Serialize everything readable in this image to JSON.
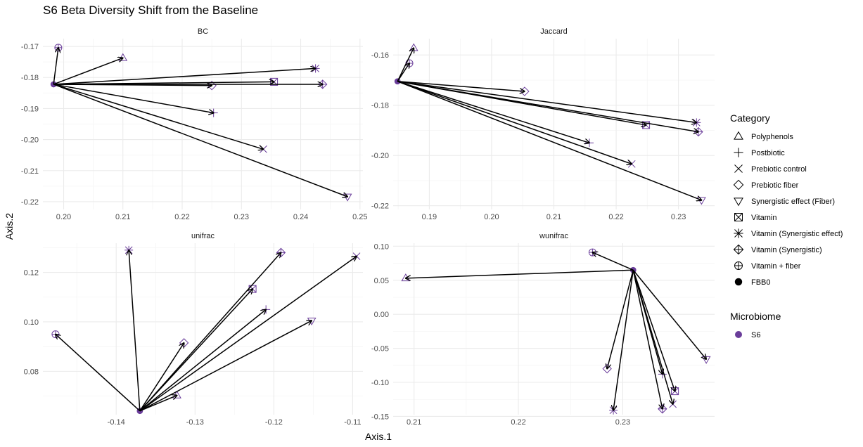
{
  "title": "S6 Beta Diversity Shift from the Baseline",
  "xlabel": "Axis.1",
  "ylabel": "Axis.2",
  "colors": {
    "point": "#6a3d9a",
    "arrow": "#000000",
    "grid_major": "#ebebeb",
    "grid_minor": "#f5f5f5",
    "text": "#4d4d4d"
  },
  "legend": {
    "category_title": "Category",
    "category_items": [
      {
        "label": "Polyphenols",
        "shape": "triangle"
      },
      {
        "label": "Postbiotic",
        "shape": "plus"
      },
      {
        "label": "Prebiotic control",
        "shape": "cross"
      },
      {
        "label": "Prebiotic fiber",
        "shape": "diamond"
      },
      {
        "label": "Synergistic effect (Fiber)",
        "shape": "triangle-down"
      },
      {
        "label": "Vitamin",
        "shape": "square-cross"
      },
      {
        "label": "Vitamin (Synergistic effect)",
        "shape": "asterisk"
      },
      {
        "label": "Vitamin (Synergistic)",
        "shape": "diamond-plus"
      },
      {
        "label": "Vitamin + fiber",
        "shape": "circle-plus"
      },
      {
        "label": "FBB0",
        "shape": "dot"
      }
    ],
    "microbiome_title": "Microbiome",
    "microbiome_items": [
      {
        "label": "S6",
        "color": "#6a3d9a"
      }
    ]
  },
  "chart_data": [
    {
      "type": "scatter",
      "title": "BC",
      "xlim": [
        0.1965,
        0.2505
      ],
      "ylim": [
        -0.2225,
        -0.1675
      ],
      "xticks": [
        0.2,
        0.21,
        0.22,
        0.23,
        0.24,
        0.25
      ],
      "xtick_labels": [
        "0.20",
        "0.21",
        "0.22",
        "0.23",
        "0.24",
        "0.25"
      ],
      "yticks": [
        -0.17,
        -0.18,
        -0.19,
        -0.2,
        -0.21,
        -0.22
      ],
      "ytick_labels": [
        "-0.17",
        "-0.18",
        "-0.19",
        "-0.20",
        "-0.21",
        "-0.22"
      ],
      "baseline": {
        "category": "FBB0",
        "x": 0.1983,
        "y": -0.1822
      },
      "points": [
        {
          "category": "Vitamin + fiber",
          "x": 0.1991,
          "y": -0.1704
        },
        {
          "category": "Polyphenols",
          "x": 0.21,
          "y": -0.1737
        },
        {
          "category": "Vitamin (Synergistic effect)",
          "x": 0.2425,
          "y": -0.1771
        },
        {
          "category": "Vitamin",
          "x": 0.2355,
          "y": -0.1814
        },
        {
          "category": "Prebiotic fiber",
          "x": 0.225,
          "y": -0.1826
        },
        {
          "category": "Vitamin (Synergistic)",
          "x": 0.2437,
          "y": -0.1822
        },
        {
          "category": "Postbiotic",
          "x": 0.2253,
          "y": -0.1914
        },
        {
          "category": "Prebiotic control",
          "x": 0.2337,
          "y": -0.2031
        },
        {
          "category": "Synergistic effect (Fiber)",
          "x": 0.2479,
          "y": -0.2184
        }
      ]
    },
    {
      "type": "scatter",
      "title": "Jaccard",
      "xlim": [
        0.1842,
        0.2358
      ],
      "ylim": [
        -0.2215,
        -0.1535
      ],
      "xticks": [
        0.19,
        0.2,
        0.21,
        0.22,
        0.23
      ],
      "xtick_labels": [
        "0.19",
        "0.20",
        "0.21",
        "0.22",
        "0.23"
      ],
      "yticks": [
        -0.16,
        -0.18,
        -0.2,
        -0.22
      ],
      "ytick_labels": [
        "-0.16",
        "-0.18",
        "-0.20",
        "-0.22"
      ],
      "baseline": {
        "category": "FBB0",
        "x": 0.1849,
        "y": -0.1705
      },
      "points": [
        {
          "category": "Polyphenols",
          "x": 0.1875,
          "y": -0.1572
        },
        {
          "category": "Vitamin + fiber",
          "x": 0.1868,
          "y": -0.1633
        },
        {
          "category": "Prebiotic fiber",
          "x": 0.2053,
          "y": -0.1745
        },
        {
          "category": "Vitamin (Synergistic effect)",
          "x": 0.2329,
          "y": -0.1869
        },
        {
          "category": "Vitamin",
          "x": 0.2248,
          "y": -0.1879
        },
        {
          "category": "Vitamin (Synergistic)",
          "x": 0.2332,
          "y": -0.1906
        },
        {
          "category": "Postbiotic",
          "x": 0.2157,
          "y": -0.195
        },
        {
          "category": "Prebiotic control",
          "x": 0.2225,
          "y": -0.2034
        },
        {
          "category": "Synergistic effect (Fiber)",
          "x": 0.2337,
          "y": -0.2178
        }
      ]
    },
    {
      "type": "scatter",
      "title": "unifrac",
      "xlim": [
        -0.1493,
        -0.1087
      ],
      "ylim": [
        0.0625,
        0.1318
      ],
      "xticks": [
        -0.14,
        -0.13,
        -0.12,
        -0.11
      ],
      "xtick_labels": [
        "-0.14",
        "-0.13",
        "-0.12",
        "-0.11"
      ],
      "yticks": [
        0.08,
        0.1,
        0.12
      ],
      "ytick_labels": [
        "0.08",
        "0.10",
        "0.12"
      ],
      "baseline": {
        "category": "FBB0",
        "x": -0.137,
        "y": 0.064
      },
      "points": [
        {
          "category": "Vitamin (Synergistic effect)",
          "x": -0.1384,
          "y": 0.129
        },
        {
          "category": "Vitamin + fiber",
          "x": -0.1477,
          "y": 0.095
        },
        {
          "category": "Prebiotic fiber",
          "x": -0.1314,
          "y": 0.0915
        },
        {
          "category": "Polyphenols",
          "x": -0.1323,
          "y": 0.0703
        },
        {
          "category": "Vitamin",
          "x": -0.1227,
          "y": 0.1133
        },
        {
          "category": "Vitamin (Synergistic)",
          "x": -0.1191,
          "y": 0.128
        },
        {
          "category": "Postbiotic",
          "x": -0.121,
          "y": 0.105
        },
        {
          "category": "Synergistic effect (Fiber)",
          "x": -0.1152,
          "y": 0.1005
        },
        {
          "category": "Prebiotic control",
          "x": -0.1095,
          "y": 0.1265
        }
      ]
    },
    {
      "type": "scatter",
      "title": "wunifrac",
      "xlim": [
        0.208,
        0.2388
      ],
      "ylim": [
        -0.1475,
        0.1045
      ],
      "xticks": [
        0.21,
        0.22,
        0.23
      ],
      "xtick_labels": [
        "0.21",
        "0.22",
        "0.23"
      ],
      "yticks": [
        0.1,
        0.05,
        0.0,
        -0.05,
        -0.1,
        -0.15
      ],
      "ytick_labels": [
        "0.10",
        "0.05",
        "0.00",
        "-0.05",
        "-0.10",
        "-0.15"
      ],
      "baseline": {
        "category": "FBB0",
        "x": 0.231,
        "y": 0.065
      },
      "points": [
        {
          "category": "Vitamin + fiber",
          "x": 0.2271,
          "y": 0.091
        },
        {
          "category": "Polyphenols",
          "x": 0.2092,
          "y": 0.053
        },
        {
          "category": "Synergistic effect (Fiber)",
          "x": 0.238,
          "y": -0.066
        },
        {
          "category": "Prebiotic fiber",
          "x": 0.2285,
          "y": -0.08
        },
        {
          "category": "Postbiotic",
          "x": 0.2338,
          "y": -0.088
        },
        {
          "category": "Vitamin",
          "x": 0.235,
          "y": -0.113
        },
        {
          "category": "Prebiotic control",
          "x": 0.2348,
          "y": -0.132
        },
        {
          "category": "Vitamin (Synergistic)",
          "x": 0.2338,
          "y": -0.139
        },
        {
          "category": "Vitamin (Synergistic effect)",
          "x": 0.2291,
          "y": -0.141
        }
      ]
    }
  ]
}
